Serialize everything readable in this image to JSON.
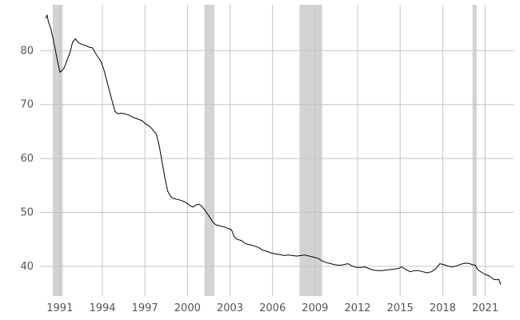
{
  "chart_data": {
    "type": "line",
    "title": "",
    "xlabel": "",
    "ylabel": "",
    "xlim": [
      1989.6,
      2023.0
    ],
    "ylim": [
      34.5,
      88.5
    ],
    "grid": true,
    "x_ticks": [
      1991,
      1994,
      1997,
      2000,
      2003,
      2006,
      2009,
      2012,
      2015,
      2018,
      2021
    ],
    "x_tick_labels": [
      "1991",
      "1994",
      "1997",
      "2000",
      "2003",
      "2006",
      "2009",
      "2012",
      "2015",
      "2018",
      "2021"
    ],
    "y_ticks": [
      40,
      50,
      60,
      70,
      80
    ],
    "y_tick_labels": [
      "40",
      "50",
      "60",
      "70",
      "80"
    ],
    "shaded_periods": [
      {
        "start": 1990.5,
        "end": 1991.2
      },
      {
        "start": 2001.2,
        "end": 2001.9
      },
      {
        "start": 2007.9,
        "end": 2009.5
      },
      {
        "start": 2020.1,
        "end": 2020.4
      }
    ],
    "colors": {
      "line": "#000000",
      "shade": "#d3d3d3",
      "grid": "#c4c4c4",
      "tick_text": "#555555"
    },
    "series": [
      {
        "x": [
          1990.0,
          1990.1,
          1990.2,
          1990.35,
          1990.5,
          1990.65,
          1990.8,
          1991.0,
          1991.15,
          1991.3,
          1991.5,
          1991.7,
          1991.9,
          1992.1,
          1992.3,
          1992.5,
          1992.8,
          1993.0,
          1993.3,
          1993.5,
          1993.7,
          1993.9,
          1994.1,
          1994.3,
          1994.5,
          1994.7,
          1994.9,
          1995.1,
          1995.3,
          1995.6,
          1995.9,
          1996.2,
          1996.5,
          1996.8,
          1997.0,
          1997.3,
          1997.5,
          1997.8,
          1998.0,
          1998.2,
          1998.4,
          1998.6,
          1998.8,
          1999.0,
          1999.3,
          1999.6,
          1999.9,
          2000.2,
          2000.4,
          2000.6,
          2000.8,
          2001.0,
          2001.2,
          2001.4,
          2001.6,
          2001.8,
          2002.0,
          2002.3,
          2002.6,
          2002.9,
          2003.1,
          2003.3,
          2003.5,
          2003.8,
          2004.1,
          2004.4,
          2004.7,
          2005.0,
          2005.3,
          2005.6,
          2005.9,
          2006.2,
          2006.5,
          2006.8,
          2007.1,
          2007.4,
          2007.7,
          2008.0,
          2008.3,
          2008.6,
          2008.9,
          2009.2,
          2009.5,
          2009.8,
          2010.1,
          2010.4,
          2010.7,
          2011.0,
          2011.3,
          2011.6,
          2011.9,
          2012.2,
          2012.5,
          2012.8,
          2013.1,
          2013.4,
          2013.7,
          2014.0,
          2014.3,
          2014.6,
          2014.9,
          2015.1,
          2015.4,
          2015.7,
          2016.0,
          2016.3,
          2016.6,
          2016.9,
          2017.2,
          2017.5,
          2017.8,
          2018.1,
          2018.4,
          2018.7,
          2019.0,
          2019.3,
          2019.6,
          2019.9,
          2020.1,
          2020.3,
          2020.5,
          2020.8,
          2021.0,
          2021.3,
          2021.6,
          2021.8,
          2021.95,
          2022.1
        ],
        "values": [
          86.0,
          86.6,
          85.3,
          84.2,
          82.5,
          80.6,
          78.5,
          76.0,
          76.3,
          76.8,
          78.2,
          79.5,
          81.6,
          82.2,
          81.5,
          81.2,
          81.0,
          80.7,
          80.5,
          79.6,
          78.8,
          78.0,
          76.5,
          74.5,
          72.5,
          70.5,
          68.7,
          68.3,
          68.4,
          68.3,
          68.0,
          67.6,
          67.3,
          67.0,
          66.5,
          66.0,
          65.5,
          64.5,
          62.5,
          59.5,
          56.5,
          54.0,
          53.0,
          52.6,
          52.4,
          52.2,
          51.8,
          51.2,
          51.0,
          51.4,
          51.5,
          51.2,
          50.5,
          49.8,
          49.0,
          48.2,
          47.7,
          47.5,
          47.3,
          47.0,
          46.8,
          45.5,
          45.0,
          44.8,
          44.2,
          44.0,
          43.8,
          43.5,
          43.0,
          42.8,
          42.5,
          42.3,
          42.2,
          42.0,
          42.1,
          42.0,
          41.9,
          42.0,
          42.1,
          41.9,
          41.7,
          41.5,
          41.0,
          40.7,
          40.5,
          40.3,
          40.2,
          40.3,
          40.5,
          40.1,
          39.8,
          39.8,
          39.9,
          39.6,
          39.3,
          39.2,
          39.2,
          39.3,
          39.4,
          39.5,
          39.6,
          39.9,
          39.4,
          39.0,
          39.2,
          39.2,
          39.0,
          38.8,
          39.0,
          39.5,
          40.5,
          40.3,
          40.0,
          39.9,
          40.1,
          40.4,
          40.6,
          40.5,
          40.3,
          40.2,
          39.3,
          38.8,
          38.5,
          38.2,
          37.6,
          37.5,
          37.6,
          36.6
        ]
      }
    ]
  }
}
